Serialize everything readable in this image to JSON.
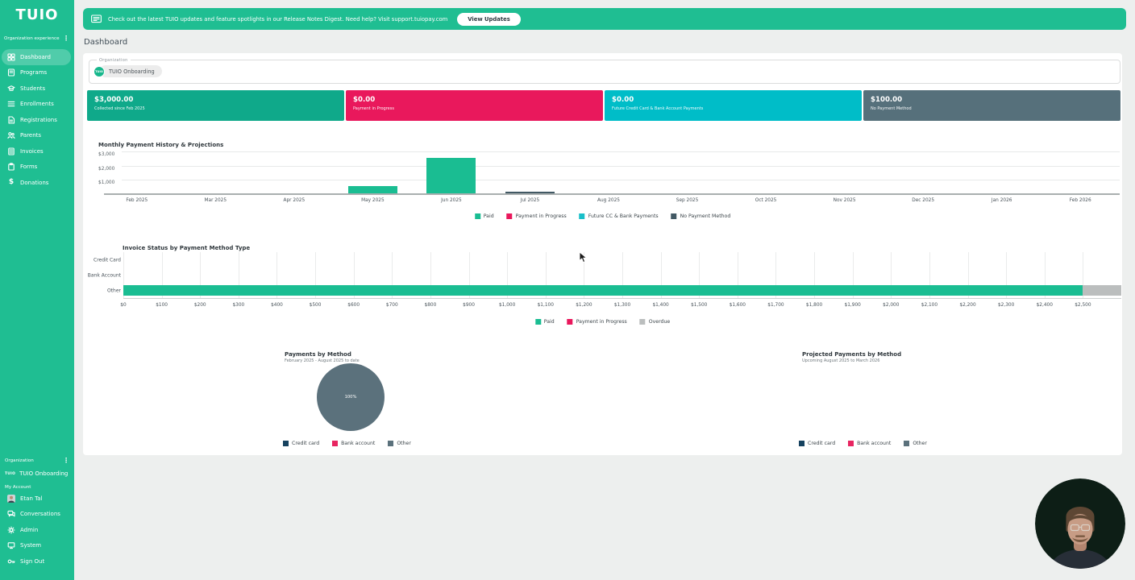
{
  "colors": {
    "brand_green": "#1FBE92",
    "page_background": "#EDEFEE"
  },
  "app": {
    "logo_text": "TUIO"
  },
  "banner": {
    "text": "Check out the latest TUIO updates and feature spotlights in our Release Notes Digest. Need help? Visit support.tuiopay.com",
    "button_label": "View Updates"
  },
  "page": {
    "title": "Dashboard"
  },
  "sidebar": {
    "section_label": "Organization experience",
    "items": [
      {
        "label": "Dashboard",
        "icon": "grid-icon",
        "active": true
      },
      {
        "label": "Programs",
        "icon": "book-icon"
      },
      {
        "label": "Students",
        "icon": "graduation-cap-icon"
      },
      {
        "label": "Enrollments",
        "icon": "list-icon"
      },
      {
        "label": "Registrations",
        "icon": "document-icon"
      },
      {
        "label": "Parents",
        "icon": "people-icon"
      },
      {
        "label": "Invoices",
        "icon": "invoice-icon"
      },
      {
        "label": "Forms",
        "icon": "clipboard-icon"
      },
      {
        "label": "Donations",
        "icon": "dollar-icon"
      }
    ],
    "footer": {
      "org_section_label": "Organization",
      "org_badge": "TUIO",
      "org_name": "TUIO Onboarding",
      "account_section_label": "My Account",
      "items": [
        {
          "label": "Etan Tal",
          "icon": "avatar"
        },
        {
          "label": "Conversations",
          "icon": "chat-icon"
        },
        {
          "label": "Admin",
          "icon": "gear-icon"
        },
        {
          "label": "System",
          "icon": "monitor-icon"
        },
        {
          "label": "Sign Out",
          "icon": "key-icon"
        }
      ]
    }
  },
  "org_selector": {
    "label": "Organization",
    "badge": "TUIO",
    "value": "TUIO Onboarding"
  },
  "stat_cards": [
    {
      "amount": "$3,000.00",
      "caption": "Collected since Feb 2025",
      "color": "#0FA98A"
    },
    {
      "amount": "$0.00",
      "caption": "Payment in Progress",
      "color": "#E9185C"
    },
    {
      "amount": "$0.00",
      "caption": "Future Credit Card & Bank Account Payments",
      "color": "#00BDC8"
    },
    {
      "amount": "$100.00",
      "caption": "No Payment Method",
      "color": "#56707B"
    }
  ],
  "chart_data": [
    {
      "id": "monthly_history",
      "type": "bar",
      "stacked": true,
      "title": "Monthly Payment History & Projections",
      "categories": [
        "Feb 2025",
        "Mar 2025",
        "Apr 2025",
        "May 2025",
        "Jun 2025",
        "Jul 2025",
        "Aug 2025",
        "Sep 2025",
        "Oct 2025",
        "Nov 2025",
        "Dec 2025",
        "Jan 2026",
        "Feb 2026"
      ],
      "series": [
        {
          "name": "Paid",
          "color": "#1ABD92",
          "values": [
            0,
            0,
            0,
            500,
            2500,
            0,
            0,
            0,
            0,
            0,
            0,
            0,
            0
          ]
        },
        {
          "name": "Payment in Progress",
          "color": "#E9185C",
          "values": [
            0,
            0,
            0,
            0,
            0,
            0,
            0,
            0,
            0,
            0,
            0,
            0,
            0
          ]
        },
        {
          "name": "Future CC & Bank Payments",
          "color": "#19BFC9",
          "values": [
            0,
            0,
            0,
            0,
            0,
            0,
            0,
            0,
            0,
            0,
            0,
            0,
            0
          ]
        },
        {
          "name": "No Payment Method",
          "color": "#425964",
          "values": [
            0,
            0,
            0,
            0,
            0,
            100,
            0,
            0,
            0,
            0,
            0,
            0,
            0
          ]
        }
      ],
      "ymax": 3000,
      "yticks": [
        "$1,000",
        "$2,000",
        "$3,000"
      ],
      "ytick_values": [
        1000,
        2000,
        3000
      ],
      "legend_position": "bottom",
      "grid": true
    },
    {
      "id": "invoice_status",
      "type": "horizontal-bar",
      "stacked": true,
      "title": "Invoice Status by Payment Method Type",
      "categories": [
        "Credit Card",
        "Bank Account",
        "Other"
      ],
      "series": [
        {
          "name": "Paid",
          "color": "#1ABD92",
          "values": [
            0,
            0,
            2500
          ]
        },
        {
          "name": "Payment in Progress",
          "color": "#E9185C",
          "values": [
            0,
            0,
            0
          ]
        },
        {
          "name": "Overdue",
          "color": "#BBBEBE",
          "values": [
            0,
            0,
            100
          ]
        }
      ],
      "xmax": 2600,
      "xticks": [
        "$0",
        "$100",
        "$200",
        "$300",
        "$400",
        "$500",
        "$600",
        "$700",
        "$800",
        "$900",
        "$1,000",
        "$1,100",
        "$1,200",
        "$1,300",
        "$1,400",
        "$1,500",
        "$1,600",
        "$1,700",
        "$1,800",
        "$1,900",
        "$2,000",
        "$2,100",
        "$2,200",
        "$2,300",
        "$2,400",
        "$2,500"
      ],
      "legend_position": "bottom",
      "grid": true
    },
    {
      "id": "payments_by_method",
      "type": "pie",
      "title": "Payments by Method",
      "subtitle": "February 2025 - August 2025 to date",
      "slices": [
        {
          "name": "Credit card",
          "color": "#16425F",
          "pct": 0
        },
        {
          "name": "Bank account",
          "color": "#E82561",
          "pct": 0
        },
        {
          "name": "Other",
          "color": "#5B717C",
          "pct": 100
        }
      ],
      "center_label": "100%"
    },
    {
      "id": "projected_payments",
      "type": "pie",
      "title": "Projected Payments by Method",
      "subtitle": "Upcoming August 2025 to March 2026",
      "slices": [
        {
          "name": "Credit card",
          "color": "#16425F",
          "pct": 0
        },
        {
          "name": "Bank account",
          "color": "#E82561",
          "pct": 0
        },
        {
          "name": "Other",
          "color": "#5B717C",
          "pct": 0
        }
      ],
      "center_label": ""
    }
  ]
}
